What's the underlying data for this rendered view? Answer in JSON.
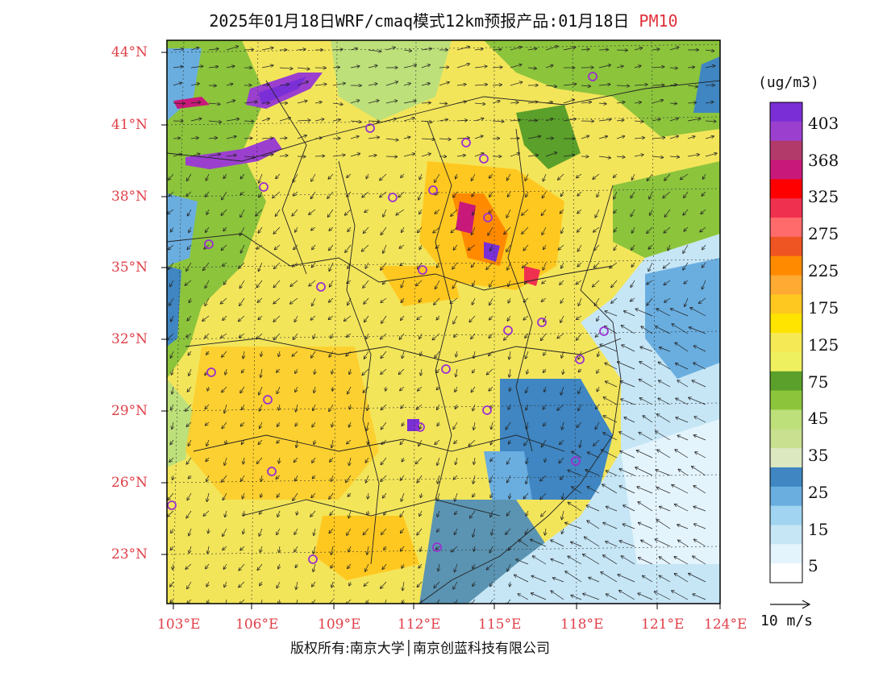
{
  "title": {
    "main": "2025年01月18日WRF/cmaq模式12km预报产品:01月18日",
    "variable": "PM10"
  },
  "legend": {
    "unit": "(ug/m3)",
    "levels": [
      "403",
      "368",
      "325",
      "275",
      "225",
      "175",
      "125",
      "75",
      "45",
      "35",
      "25",
      "15",
      "5"
    ],
    "colors": [
      "#7a2fd6",
      "#9b3fcf",
      "#b23a6a",
      "#c8197a",
      "#ff0000",
      "#f0304f",
      "#ff6a6a",
      "#ee5522",
      "#ff8a00",
      "#ffaa33",
      "#ffc820",
      "#ffe400",
      "#f5ea55",
      "#eef060",
      "#5aa02a",
      "#8cc43c",
      "#bde07a",
      "#c8e090",
      "#dce8c0",
      "#3f86c2",
      "#6aaee0",
      "#a0d4f0",
      "#c6e6f6",
      "#e4f4fc",
      "#ffffff"
    ]
  },
  "wind_reference": {
    "label": "10 m/s"
  },
  "axes": {
    "lat_labels": [
      "44°N",
      "41°N",
      "38°N",
      "35°N",
      "32°N",
      "29°N",
      "26°N",
      "23°N"
    ],
    "lon_labels": [
      "103°E",
      "106°E",
      "109°E",
      "112°E",
      "115°E",
      "118°E",
      "121°E",
      "124°E"
    ]
  },
  "copyright": "版权所有:南京大学│南京创蓝科技有限公司",
  "palette": {
    "yellow": "#f3e55a",
    "light_yellow": "#eef060",
    "orange": "#ffc820",
    "green": "#8cc43c",
    "dark_green": "#5aa02a",
    "blue": "#6aaee0",
    "light_blue": "#c6e6f6",
    "purple": "#7a2fd6",
    "magenta": "#c8197a",
    "city_marker": "#9a30d0"
  }
}
